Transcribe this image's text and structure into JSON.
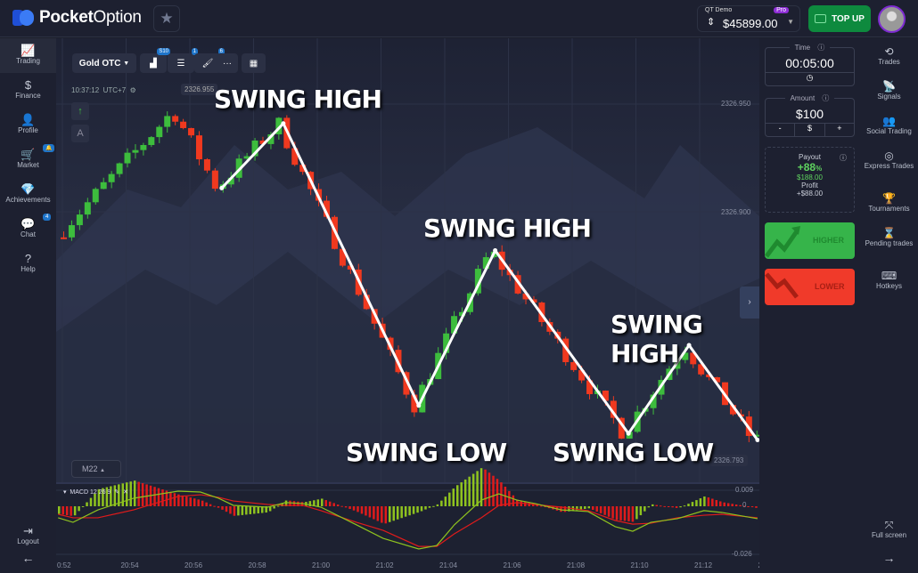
{
  "app": {
    "brand_bold": "Pocket",
    "brand_light": "Option"
  },
  "account": {
    "label": "QT Demo",
    "tier": "Pro",
    "balance": "$45899.00",
    "top_up": "TOP UP"
  },
  "left_nav": [
    {
      "label": "Trading",
      "icon": "📈"
    },
    {
      "label": "Finance",
      "icon": "$"
    },
    {
      "label": "Profile",
      "icon": "👤"
    },
    {
      "label": "Market",
      "icon": "🛒",
      "badge": "🔔"
    },
    {
      "label": "Achievements",
      "icon": "💎"
    },
    {
      "label": "Chat",
      "icon": "💬",
      "badge": "4"
    },
    {
      "label": "Help",
      "icon": "?"
    }
  ],
  "left_bottom": {
    "logout": "Logout",
    "arrow": "←"
  },
  "toolbar": {
    "asset": "Gold OTC",
    "candle_badge": "S10",
    "indicators_badge": "1",
    "drawings_badge": "6",
    "more": "···"
  },
  "chart_info": {
    "time": "10:37:12",
    "tz": "UTC+7",
    "price_tag": "2326.955",
    "timeframe": "M22"
  },
  "price_axis": [
    "2326.950",
    "2326.900"
  ],
  "current_price": "2326.793",
  "time_axis": [
    "0:52",
    "20:54",
    "20:56",
    "20:58",
    "21:00",
    "21:02",
    "21:04",
    "21:06",
    "21:08",
    "21:10",
    "21:12",
    "21"
  ],
  "annotations": {
    "high_1": "SWING HIGH",
    "high_2": "SWING HIGH",
    "high_3": "SWING HIGH",
    "low_1": "SWING LOW",
    "low_2": "SWING LOW"
  },
  "price_path": [
    [
      "20:52:00",
      2326.889
    ],
    [
      "20:55:38",
      2326.947
    ],
    [
      "20:57:00",
      2326.911
    ],
    [
      "20:58:56",
      2326.941
    ],
    [
      "21:03:11",
      2326.81
    ],
    [
      "21:05:35",
      2326.882
    ],
    [
      "21:09:46",
      2326.797
    ],
    [
      "21:11:40",
      2326.838
    ],
    [
      "21:13:49",
      2326.794
    ]
  ],
  "swing_line": [
    [
      "20:57:00",
      2326.911
    ],
    [
      "20:58:56",
      2326.941
    ],
    [
      "21:03:11",
      2326.81
    ],
    [
      "21:05:35",
      2326.882
    ],
    [
      "21:09:46",
      2326.797
    ],
    [
      "21:11:40",
      2326.838
    ],
    [
      "21:13:49",
      2326.794
    ]
  ],
  "macd": {
    "label": "MACD 12 26 9",
    "axis": [
      "0.009",
      "0",
      "-0.026"
    ],
    "times": [
      "20:51:52",
      "20:52:20",
      "20:53:07",
      "20:54:14",
      "20:55:38",
      "20:56:20",
      "20:56:54",
      "20:57:22",
      "20:58:26",
      "20:59:00",
      "20:59:33",
      "21:00:07",
      "21:01:14",
      "21:02:04",
      "21:03:11",
      "21:03:45",
      "21:04:18",
      "21:05:09",
      "21:05:42",
      "21:06:16",
      "21:06:50",
      "21:07:40",
      "21:08:30",
      "21:09:21",
      "21:09:54",
      "21:10:28",
      "21:11:18",
      "21:12:08",
      "21:12:42",
      "21:13:49"
    ],
    "macd_line": [
      -0.0063,
      -0.0088,
      -0.002,
      0.0044,
      0.0083,
      0.0078,
      0.0044,
      0.0005,
      -0.0005,
      0.002,
      0.0015,
      -0.0005,
      -0.0102,
      -0.0176,
      -0.0234,
      -0.0215,
      -0.0102,
      0.0034,
      0.0068,
      0.0034,
      0.0015,
      -0.002,
      -0.0029,
      -0.0112,
      -0.0137,
      -0.0088,
      -0.0068,
      -0.0024,
      -0.0034,
      -0.0068
    ],
    "signal_line": [
      -0.0044,
      -0.0063,
      -0.0063,
      -0.002,
      0.0054,
      0.0063,
      0.0049,
      0.0029,
      0.001,
      0.0005,
      0.0005,
      -0.0024,
      -0.0088,
      -0.0132,
      -0.022,
      -0.022,
      -0.0151,
      -0.0063,
      0.0005,
      0.002,
      0.001,
      -0.0005,
      -0.0024,
      -0.0078,
      -0.0098,
      -0.0093,
      -0.0063,
      -0.0049,
      -0.0044,
      -0.0063
    ]
  },
  "colors": {
    "up": "#3dbd3d",
    "down": "#f0391f",
    "macd": "#8fc31f",
    "signal": "#e01b1b"
  },
  "trade": {
    "time_label": "Time",
    "time_value": "00:05:00",
    "amount_label": "Amount",
    "amount_value": "$100",
    "minus": "-",
    "currency": "$",
    "plus": "+",
    "payout_label": "Payout",
    "payout_pct": "+88",
    "payout_unit": "%",
    "payout_amount": "$188.00",
    "profit_label": "Profit",
    "profit_value": "+$88.00",
    "higher": "HIGHER",
    "lower": "LOWER"
  },
  "right_nav": [
    {
      "label": "Trades",
      "icon": "⟲"
    },
    {
      "label": "Signals",
      "icon": "📡"
    },
    {
      "label": "Social Trading",
      "icon": "👥"
    },
    {
      "label": "Express Trades",
      "icon": "◎"
    },
    {
      "label": "Tournaments",
      "icon": "🏆"
    },
    {
      "label": "Pending trades",
      "icon": "⌛"
    },
    {
      "label": "Hotkeys",
      "icon": "⌨"
    }
  ],
  "right_bottom": {
    "fullscreen": "Full screen",
    "arrow": "→"
  }
}
